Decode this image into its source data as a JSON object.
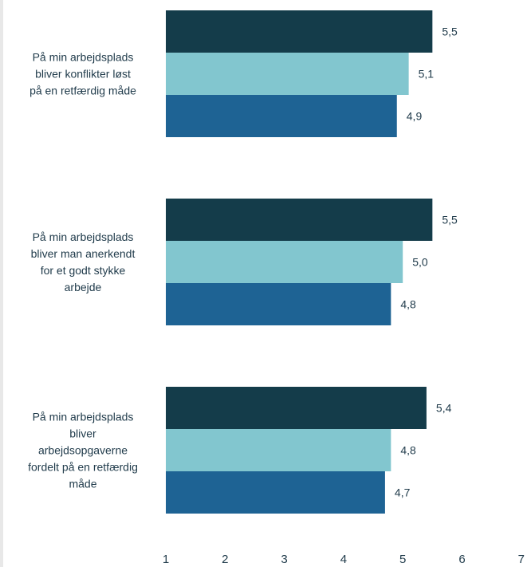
{
  "chart_data": {
    "type": "bar",
    "orientation": "horizontal",
    "categories": [
      "På min arbejdsplads bliver konflikter løst på en retfærdig måde",
      "På min arbejdsplads bliver man anerkendt for et godt stykke arbejde",
      "På min arbejdsplads bliver arbejdsopgaverne fordelt på en retfærdig måde"
    ],
    "category_lines": [
      [
        "På min arbejdsplads",
        "bliver konflikter løst",
        "på en retfærdig måde"
      ],
      [
        "På min arbejdsplads",
        "bliver man anerkendt",
        "for et godt stykke",
        "arbejde"
      ],
      [
        "På min arbejdsplads",
        "bliver",
        "arbejdsopgaverne",
        "fordelt på en retfærdig",
        "måde"
      ]
    ],
    "series": [
      {
        "values": [
          5.5,
          5.5,
          5.4
        ],
        "labels": [
          "5,5",
          "5,5",
          "5,4"
        ],
        "color": "#143c4a"
      },
      {
        "values": [
          5.1,
          5.0,
          4.8
        ],
        "labels": [
          "5,1",
          "5,0",
          "4,8"
        ],
        "color": "#82c6cf"
      },
      {
        "values": [
          4.9,
          4.8,
          4.7
        ],
        "labels": [
          "4,9",
          "4,8",
          "4,7"
        ],
        "color": "#1e6394"
      }
    ],
    "xlim": [
      1,
      7
    ],
    "ticks": [
      "1",
      "2",
      "3",
      "4",
      "5",
      "6",
      "7"
    ],
    "title": "",
    "xlabel": "",
    "ylabel": "",
    "grid": false,
    "legend": "none"
  }
}
